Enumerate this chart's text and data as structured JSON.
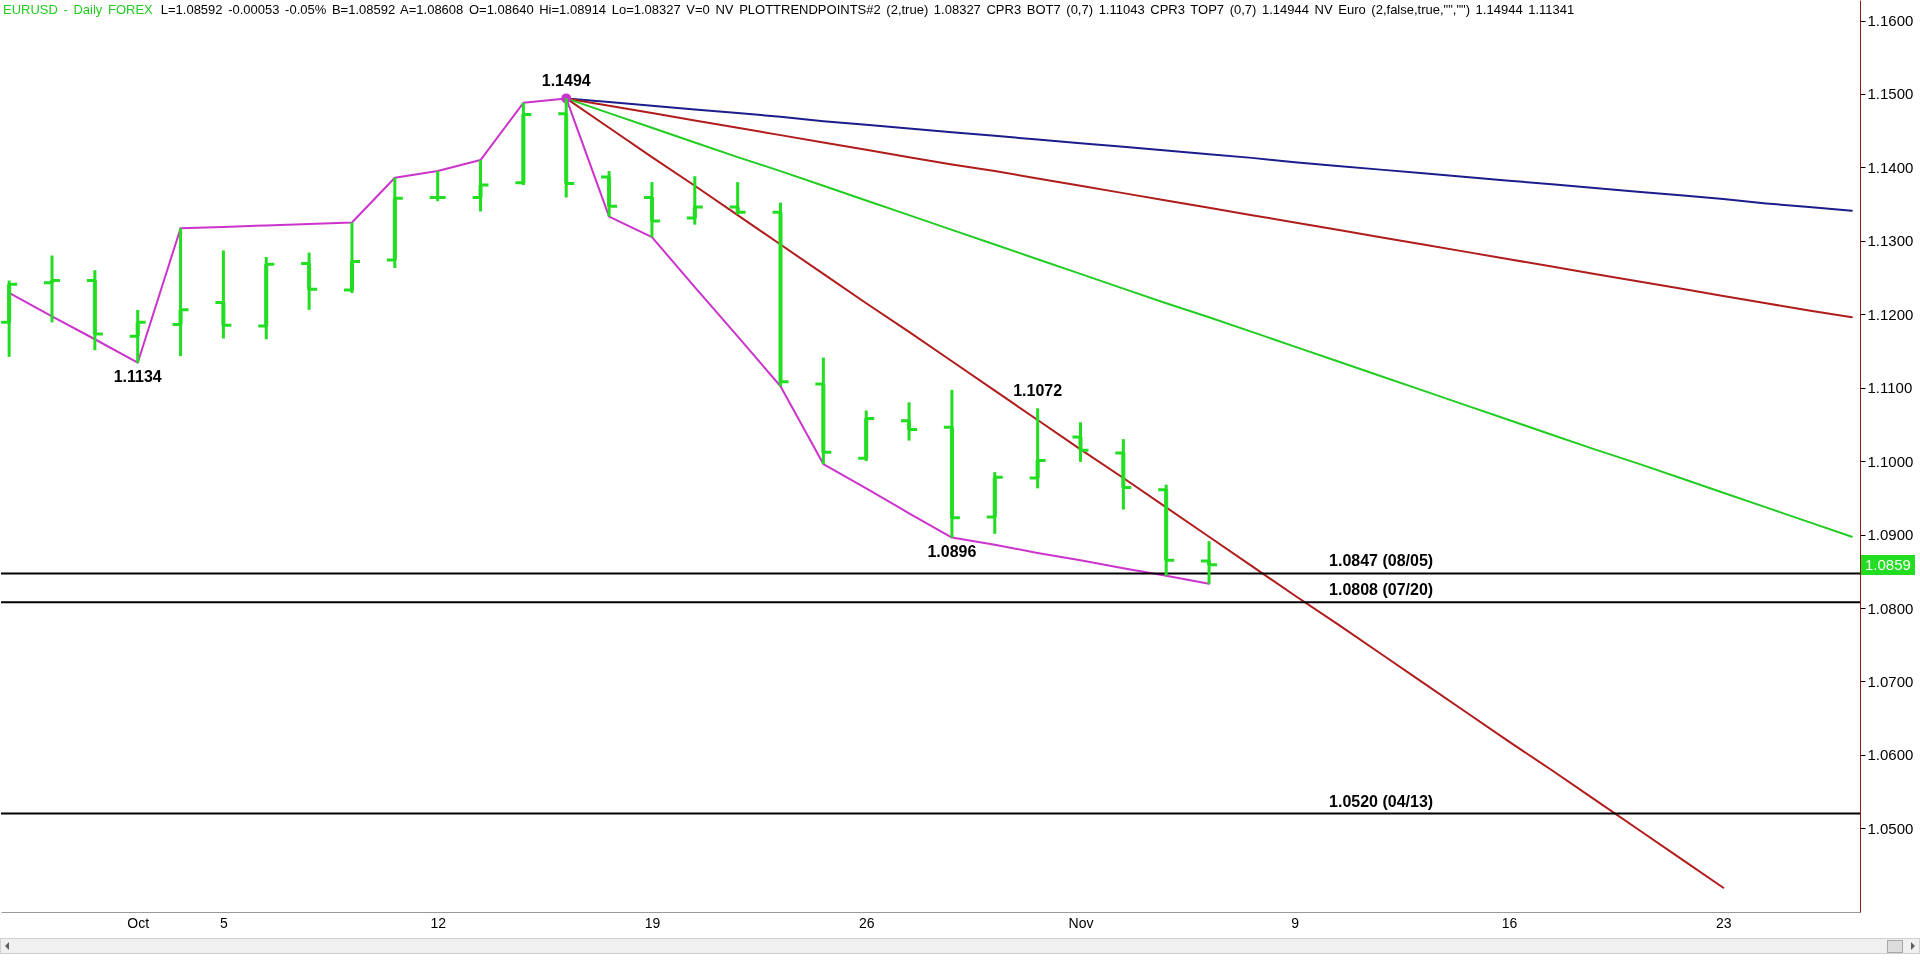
{
  "chart_data": {
    "type": "candlestick",
    "title": "EURUSD - Daily FOREX",
    "subtitle": "L=1.08592 -0.00053 -0.05% B=1.08592 A=1.08608 O=1.08640 Hi=1.08914 Lo=1.08327 V=0 NV PLOTTRENDPOINTS#2 (2,true) 1.08327 CPR3 BOT7 (0,7) 1.11043 CPR3 TOP7 (0,7) 1.14944 NV Euro (2,false,true,\"\",\"\") 1.14944 1.11341",
    "categories": [
      null,
      null,
      null,
      "Oct",
      null,
      "5",
      null,
      null,
      null,
      null,
      "12",
      null,
      null,
      null,
      null,
      "19",
      null,
      null,
      null,
      null,
      "26",
      null,
      null,
      null,
      null,
      "Nov",
      null,
      null,
      null,
      null,
      "9",
      null,
      null,
      null,
      null,
      "16",
      null,
      null,
      null,
      null,
      "23",
      null,
      null,
      null
    ],
    "ohlc": [
      [
        1.1189,
        1.1246,
        1.1142,
        1.1241
      ],
      [
        1.1243,
        1.128,
        1.1189,
        1.1246
      ],
      [
        1.1246,
        1.126,
        1.1151,
        1.1173
      ],
      [
        1.117,
        1.1206,
        1.1134,
        1.1189
      ],
      [
        1.1186,
        1.1317,
        1.1143,
        1.1206
      ],
      [
        1.1216,
        1.1287,
        1.1167,
        1.1185
      ],
      [
        1.1184,
        1.1278,
        1.1166,
        1.1268
      ],
      [
        1.1269,
        1.1284,
        1.1206,
        1.1234
      ],
      [
        1.1233,
        1.1325,
        1.1229,
        1.1272
      ],
      [
        1.1274,
        1.1386,
        1.1263,
        1.1358
      ],
      [
        1.1359,
        1.1395,
        1.1354,
        1.1359
      ],
      [
        1.1359,
        1.141,
        1.134,
        1.1376
      ],
      [
        1.1379,
        1.1488,
        1.1376,
        1.1472
      ],
      [
        1.1473,
        1.1494,
        1.1359,
        1.1378
      ],
      [
        1.1387,
        1.1395,
        1.1333,
        1.1347
      ],
      [
        1.1359,
        1.138,
        1.1305,
        1.1327
      ],
      [
        1.1331,
        1.1388,
        1.1322,
        1.1346
      ],
      [
        1.1346,
        1.138,
        1.1336,
        1.1339
      ],
      [
        1.1339,
        1.1352,
        1.1102,
        1.1108
      ],
      [
        1.1105,
        1.1141,
        1.0996,
        1.1012
      ],
      [
        1.1004,
        1.1069,
        1.1,
        1.1058
      ],
      [
        1.1055,
        1.108,
        1.1028,
        1.1043
      ],
      [
        1.1046,
        1.1097,
        1.0896,
        1.0923
      ],
      [
        1.0924,
        1.0985,
        1.0901,
        1.0978
      ],
      [
        1.0977,
        1.1072,
        1.0963,
        1.1001
      ],
      [
        1.1033,
        1.1053,
        1.0999,
        1.1015
      ],
      [
        1.1011,
        1.103,
        1.0934,
        1.0964
      ],
      [
        1.0961,
        1.0968,
        1.0844,
        1.0865
      ],
      [
        1.0864,
        1.0891,
        1.0833,
        1.0859
      ],
      null,
      null,
      null,
      null,
      null,
      null,
      null,
      null,
      null,
      null,
      null,
      null,
      null,
      null,
      null
    ],
    "color": "#22dd22",
    "series": [
      {
        "type": "line",
        "color": "#cc33cc",
        "values": [
          1.1229,
          1.1197,
          1.1166,
          1.1134,
          1.1317,
          1.1319,
          1.1321,
          1.1323,
          1.1325,
          1.1386,
          1.1395,
          1.141,
          1.1488,
          1.1494,
          1.1333,
          1.1305,
          1.1237,
          1.117,
          1.1102,
          1.0996,
          1.0963,
          1.0929,
          1.0896,
          1.0886,
          1.0875,
          1.0865,
          1.0854,
          1.0844,
          1.0833,
          null,
          null,
          null,
          null,
          null,
          null,
          null,
          null,
          null,
          null,
          null,
          null,
          null,
          null,
          null
        ]
      },
      {
        "type": "line",
        "color": "#1c1c8c",
        "values": [
          null,
          null,
          null,
          null,
          null,
          null,
          null,
          null,
          null,
          null,
          null,
          null,
          null,
          1.1494,
          1.1489,
          1.1484,
          1.1479,
          1.1474,
          1.1469,
          1.1463,
          1.1458,
          1.1453,
          1.1448,
          1.1443,
          1.1438,
          1.1433,
          1.1428,
          1.1423,
          1.1418,
          1.1413,
          1.1407,
          1.1402,
          1.1397,
          1.1392,
          1.1387,
          1.1382,
          1.1377,
          1.1372,
          1.1367,
          1.1362,
          1.1357,
          1.1351,
          1.1346,
          1.1341
        ]
      },
      {
        "type": "line",
        "color": "#b01c1c",
        "values": [
          null,
          null,
          null,
          null,
          null,
          null,
          null,
          null,
          null,
          null,
          null,
          null,
          null,
          1.1494,
          1.1484,
          1.1474,
          1.1464,
          1.1454,
          1.1444,
          1.1434,
          1.1424,
          1.1414,
          1.1404,
          1.1395,
          1.1385,
          1.1375,
          1.1365,
          1.1355,
          1.1345,
          1.1335,
          1.1325,
          1.1315,
          1.1305,
          1.1295,
          1.1285,
          1.1275,
          1.1265,
          1.1255,
          1.1245,
          1.1235,
          1.1225,
          1.1215,
          1.1205,
          1.1196
        ]
      },
      {
        "type": "line",
        "color": "#22cc22",
        "values": [
          null,
          null,
          null,
          null,
          null,
          null,
          null,
          null,
          null,
          null,
          null,
          null,
          null,
          1.1494,
          1.1474,
          1.1454,
          1.1434,
          1.1414,
          1.1395,
          1.1375,
          1.1355,
          1.1335,
          1.1315,
          1.1295,
          1.1275,
          1.1255,
          1.1235,
          1.1215,
          1.1196,
          1.1176,
          1.1156,
          1.1136,
          1.1116,
          1.1096,
          1.1076,
          1.1056,
          1.1036,
          1.1016,
          1.0997,
          1.0977,
          1.0957,
          1.0937,
          1.0917,
          1.0897
        ]
      },
      {
        "type": "line",
        "color": "#b01c1c",
        "values": [
          null,
          null,
          null,
          null,
          null,
          null,
          null,
          null,
          null,
          null,
          null,
          null,
          null,
          1.1494,
          1.1454,
          1.1414,
          1.1375,
          1.1335,
          1.1295,
          1.1255,
          1.1215,
          1.1176,
          1.1136,
          1.1096,
          1.1056,
          1.1016,
          1.0977,
          1.0937,
          1.0897,
          1.0857,
          1.0817,
          1.0778,
          1.0738,
          1.0698,
          1.0658,
          1.0618,
          1.0579,
          1.0539,
          1.0499,
          1.0459,
          1.0419,
          null,
          null,
          null
        ]
      },
      {
        "type": "scatter",
        "color": "#cc33cc",
        "values": [
          null,
          null,
          null,
          null,
          null,
          null,
          null,
          null,
          null,
          null,
          null,
          null,
          null,
          1.1494,
          null,
          null,
          null,
          null,
          null,
          null,
          null,
          null,
          null,
          null,
          null,
          null,
          null,
          null,
          null,
          null,
          null,
          null,
          null,
          null,
          null,
          null,
          null,
          null,
          null,
          null,
          null,
          null,
          null,
          null
        ]
      }
    ],
    "ylim": [
      1.0386,
      1.1628
    ],
    "yticks": [
      {
        "value": 1.05,
        "label": "1.0500"
      },
      {
        "value": 1.06,
        "label": "1.0600"
      },
      {
        "value": 1.07,
        "label": "1.0700"
      },
      {
        "value": 1.08,
        "label": "1.0800"
      },
      {
        "value": 1.09,
        "label": "1.0900"
      },
      {
        "value": 1.1,
        "label": "1.1000"
      },
      {
        "value": 1.11,
        "label": "1.1100"
      },
      {
        "value": 1.12,
        "label": "1.1200"
      },
      {
        "value": 1.13,
        "label": "1.1300"
      },
      {
        "value": 1.14,
        "label": "1.1400"
      },
      {
        "value": 1.15,
        "label": "1.1500"
      },
      {
        "value": 1.16,
        "label": "1.1600"
      }
    ],
    "ref_lines": [
      {
        "axis": "y",
        "value": 1.0847,
        "label": "1.0847 (08/05)"
      },
      {
        "axis": "y",
        "value": 1.0808,
        "label": "1.0808 (07/20)"
      },
      {
        "axis": "y",
        "value": 1.052,
        "label": "1.0520 (04/13)"
      }
    ],
    "annotations": [
      {
        "text": "1.1494",
        "y": 1.1494
      },
      {
        "text": "1.1134",
        "y": 1.1134
      },
      {
        "text": "1.1072",
        "y": 1.1072
      },
      {
        "text": "1.0896",
        "y": 1.0896
      },
      "1.0859"
    ]
  }
}
